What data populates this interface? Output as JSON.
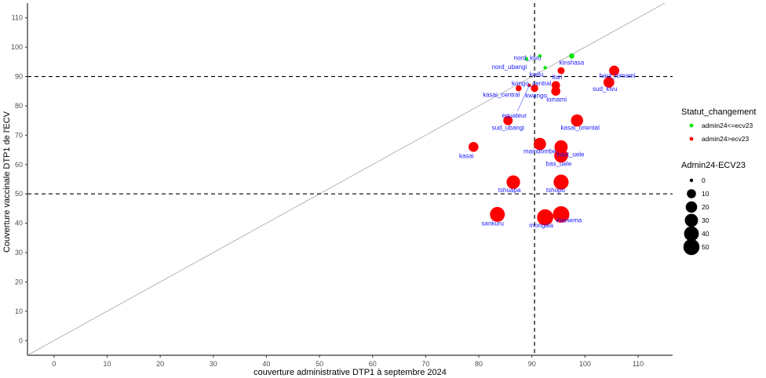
{
  "chart_data": {
    "type": "scatter",
    "xlabel": "couverture administrative DTP1 à septembre 2024",
    "ylabel": "Couverture vaccinale DTP1 de l'ECV",
    "xlim": [
      -5,
      116.5
    ],
    "ylim": [
      -5,
      115
    ],
    "xticks": [
      0,
      10,
      20,
      30,
      40,
      50,
      60,
      70,
      80,
      90,
      100,
      110
    ],
    "yticks": [
      0,
      10,
      20,
      30,
      40,
      50,
      60,
      70,
      80,
      90,
      100,
      110
    ],
    "reference_lines": {
      "vline_x": 90.5,
      "hline_y": [
        90,
        50
      ],
      "diagonal": "y = x"
    },
    "colors": {
      "admin24<=ecv23": "#00e600",
      "admin24>ecv23": "#ff0000"
    },
    "legend_status": {
      "title": "Statut_changement",
      "entries": [
        "admin24<=ecv23",
        "admin24>ecv23"
      ]
    },
    "legend_size": {
      "title": "Admin24-ECV23",
      "entries": [
        "0",
        "10",
        "20",
        "30",
        "40",
        "50"
      ],
      "values": [
        0,
        10,
        20,
        30,
        40,
        50
      ]
    },
    "points": [
      {
        "label": "nord_kivu",
        "x": 91.5,
        "y": 97,
        "diff": 0,
        "status": "admin24<=ecv23"
      },
      {
        "label": "kinshasa",
        "x": 97.5,
        "y": 97,
        "diff": 1,
        "status": "admin24<=ecv23"
      },
      {
        "label": "nord_ubangi",
        "x": 89,
        "y": 96,
        "diff": 0,
        "status": "admin24<=ecv23"
      },
      {
        "label": "kwilu",
        "x": 92.5,
        "y": 93,
        "diff": 0,
        "status": "admin24<=ecv23"
      },
      {
        "label": "ituri",
        "x": 95.5,
        "y": 92,
        "diff": 4,
        "status": "admin24>ecv23"
      },
      {
        "label": "haut_lomami",
        "x": 105.5,
        "y": 92,
        "diff": 14,
        "status": "admin24>ecv23"
      },
      {
        "label": "sud_kivu",
        "x": 104.5,
        "y": 88,
        "diff": 17,
        "status": "admin24>ecv23"
      },
      {
        "label": "kongo_central",
        "x": 94.5,
        "y": 87,
        "diff": 8,
        "status": "admin24>ecv23"
      },
      {
        "label": "kasai_central",
        "x": 87.5,
        "y": 86,
        "diff": 2,
        "status": "admin24>ecv23"
      },
      {
        "label": "kwango",
        "x": 90.5,
        "y": 86,
        "diff": 5,
        "status": "admin24>ecv23"
      },
      {
        "label": "lomami",
        "x": 94.5,
        "y": 85,
        "diff": 10,
        "status": "admin24>ecv23"
      },
      {
        "label": "equateur",
        "x": 89.5,
        "y": 87,
        "diff": 0,
        "status": "admin24>ecv23"
      },
      {
        "label": "sud_ubangi",
        "x": 85.5,
        "y": 75,
        "diff": 11,
        "status": "admin24>ecv23"
      },
      {
        "label": "kasai_oriental",
        "x": 98.5,
        "y": 75,
        "diff": 24,
        "status": "admin24>ecv23"
      },
      {
        "label": "maindombe",
        "x": 91.5,
        "y": 67,
        "diff": 25,
        "status": "admin24>ecv23"
      },
      {
        "label": "haut_uele",
        "x": 95.5,
        "y": 66,
        "diff": 30,
        "status": "admin24>ecv23"
      },
      {
        "label": "kasai",
        "x": 79,
        "y": 66,
        "diff": 13,
        "status": "admin24>ecv23"
      },
      {
        "label": "bas_uele",
        "x": 95.5,
        "y": 63,
        "diff": 33,
        "status": "admin24>ecv23"
      },
      {
        "label": "tshuapa",
        "x": 86.5,
        "y": 54,
        "diff": 32,
        "status": "admin24>ecv23"
      },
      {
        "label": "tshopo",
        "x": 95.5,
        "y": 54,
        "diff": 42,
        "status": "admin24>ecv23"
      },
      {
        "label": "sankuru",
        "x": 83.5,
        "y": 43,
        "diff": 41,
        "status": "admin24>ecv23"
      },
      {
        "label": "mongala",
        "x": 92.5,
        "y": 42,
        "diff": 51,
        "status": "admin24>ecv23"
      },
      {
        "label": "maniema",
        "x": 95.5,
        "y": 43,
        "diff": 53,
        "status": "admin24>ecv23"
      }
    ]
  }
}
